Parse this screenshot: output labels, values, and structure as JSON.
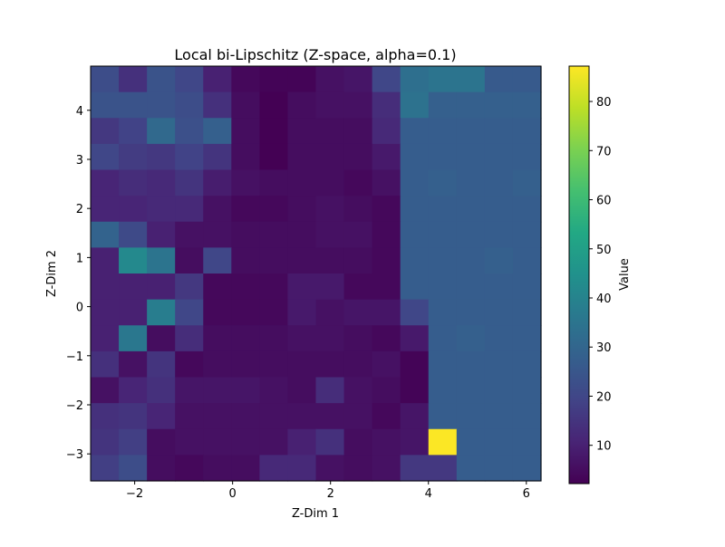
{
  "chart_data": {
    "type": "heatmap",
    "title": "Local bi-Lipschitz (Z-space, alpha=0.1)",
    "xlabel": "Z-Dim 1",
    "ylabel": "Z-Dim 2",
    "colorbar_label": "Value",
    "colormap": "viridis",
    "xlim": [
      -2.9,
      6.3
    ],
    "ylim": [
      -3.55,
      4.9
    ],
    "vmin": 2.2,
    "vmax": 87.2,
    "x_ticks": [
      -2,
      0,
      2,
      4,
      6
    ],
    "y_ticks": [
      -3,
      -2,
      -1,
      0,
      1,
      2,
      3,
      4
    ],
    "colorbar_ticks": [
      10,
      20,
      30,
      40,
      50,
      60,
      70,
      80
    ],
    "grid": false,
    "cols": 16,
    "rows": 16,
    "values_rows_top_to_bottom": [
      [
        22,
        14,
        24,
        20,
        10,
        4,
        3,
        3,
        6,
        7,
        20,
        33,
        35,
        35,
        26,
        26
      ],
      [
        24,
        24,
        24,
        22,
        14,
        5,
        2,
        5,
        6,
        6,
        13,
        34,
        28,
        28,
        28,
        28
      ],
      [
        16,
        19,
        31,
        23,
        28,
        5,
        2,
        5,
        5,
        5,
        12,
        27,
        27,
        27,
        27,
        27
      ],
      [
        20,
        17,
        16,
        19,
        15,
        5,
        2,
        5,
        5,
        5,
        8,
        27,
        27,
        27,
        27,
        27
      ],
      [
        11,
        13,
        12,
        15,
        9,
        6,
        5,
        5,
        5,
        4,
        6,
        27,
        28,
        27,
        27,
        28
      ],
      [
        11,
        11,
        12,
        12,
        6,
        4,
        4,
        5,
        6,
        5,
        4,
        27,
        27,
        27,
        27,
        27
      ],
      [
        29,
        21,
        10,
        6,
        6,
        5,
        5,
        5,
        6,
        6,
        4,
        27,
        27,
        27,
        27,
        27
      ],
      [
        10,
        42,
        35,
        5,
        20,
        5,
        5,
        5,
        5,
        5,
        4,
        27,
        27,
        27,
        28,
        27
      ],
      [
        10,
        10,
        10,
        16,
        4,
        4,
        4,
        8,
        8,
        4,
        4,
        27,
        27,
        27,
        27,
        27
      ],
      [
        10,
        10,
        38,
        20,
        4,
        4,
        4,
        8,
        6,
        7,
        7,
        20,
        27,
        27,
        27,
        27
      ],
      [
        10,
        36,
        5,
        13,
        5,
        5,
        5,
        6,
        6,
        5,
        4,
        8,
        27,
        28,
        27,
        27
      ],
      [
        14,
        6,
        15,
        4,
        5,
        5,
        5,
        5,
        5,
        5,
        6,
        3,
        27,
        27,
        27,
        27
      ],
      [
        6,
        11,
        14,
        7,
        7,
        7,
        6,
        5,
        13,
        6,
        5,
        3,
        27,
        27,
        27,
        27
      ],
      [
        14,
        15,
        11,
        6,
        6,
        6,
        6,
        6,
        6,
        6,
        4,
        7,
        27,
        27,
        27,
        27
      ],
      [
        15,
        18,
        5,
        6,
        6,
        6,
        6,
        10,
        14,
        5,
        6,
        7,
        87,
        27,
        27,
        27
      ],
      [
        18,
        22,
        5,
        4,
        5,
        5,
        12,
        12,
        6,
        5,
        6,
        16,
        16,
        27,
        27,
        27
      ]
    ]
  }
}
